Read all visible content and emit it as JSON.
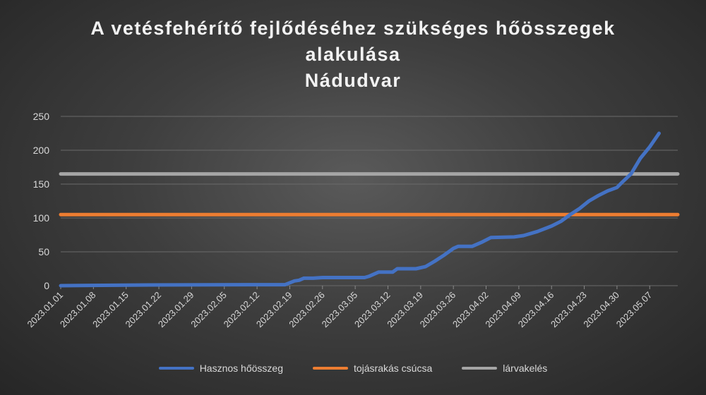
{
  "chart_data": {
    "type": "line",
    "title_lines": [
      "A vetésfehérítő fejlődéséhez szükséges hőösszegek",
      "alakulása",
      "Nádudvar"
    ],
    "xlabel": "",
    "ylabel": "",
    "ylim": [
      0,
      250
    ],
    "yticks": [
      0,
      50,
      100,
      150,
      200,
      250
    ],
    "grid": true,
    "legend_position": "bottom",
    "x_start": "2023.01.01",
    "x_end": "2023.05.13",
    "x_ticks": [
      "2023.01.01",
      "2023.01.08",
      "2023.01.15",
      "2023.01.22",
      "2023.01.29",
      "2023.02.05",
      "2023.02.12",
      "2023.02.19",
      "2023.02.26",
      "2023.03.05",
      "2023.03.12",
      "2023.03.19",
      "2023.03.26",
      "2023.04.02",
      "2023.04.09",
      "2023.04.16",
      "2023.04.23",
      "2023.04.30",
      "2023.05.07"
    ],
    "series": [
      {
        "name": "Hasznos hőösszeg",
        "color": "#4472C4",
        "points": [
          [
            "2023.01.01",
            0
          ],
          [
            "2023.01.10",
            0.5
          ],
          [
            "2023.01.20",
            1
          ],
          [
            "2023.02.10",
            1.5
          ],
          [
            "2023.02.18",
            1.5
          ],
          [
            "2023.02.20",
            7
          ],
          [
            "2023.02.21",
            8
          ],
          [
            "2023.02.22",
            11
          ],
          [
            "2023.02.24",
            11
          ],
          [
            "2023.02.26",
            12
          ],
          [
            "2023.03.07",
            12
          ],
          [
            "2023.03.08",
            14
          ],
          [
            "2023.03.10",
            20
          ],
          [
            "2023.03.13",
            20
          ],
          [
            "2023.03.14",
            25
          ],
          [
            "2023.03.18",
            25
          ],
          [
            "2023.03.20",
            28
          ],
          [
            "2023.03.22",
            36
          ],
          [
            "2023.03.24",
            45
          ],
          [
            "2023.03.26",
            55
          ],
          [
            "2023.03.27",
            58
          ],
          [
            "2023.03.30",
            58
          ],
          [
            "2023.04.01",
            64
          ],
          [
            "2023.04.03",
            71
          ],
          [
            "2023.04.08",
            72
          ],
          [
            "2023.04.10",
            74
          ],
          [
            "2023.04.13",
            80
          ],
          [
            "2023.04.16",
            88
          ],
          [
            "2023.04.18",
            95
          ],
          [
            "2023.04.20",
            105
          ],
          [
            "2023.04.22",
            114
          ],
          [
            "2023.04.24",
            125
          ],
          [
            "2023.04.26",
            133
          ],
          [
            "2023.04.28",
            140
          ],
          [
            "2023.04.30",
            145
          ],
          [
            "2023.05.01",
            152
          ],
          [
            "2023.05.03",
            165
          ],
          [
            "2023.05.05",
            188
          ],
          [
            "2023.05.07",
            205
          ],
          [
            "2023.05.09",
            225
          ]
        ]
      },
      {
        "name": "tojásrakás csúcsa",
        "color": "#ED7D31",
        "points": [
          [
            "2023.01.01",
            105
          ],
          [
            "2023.05.13",
            105
          ]
        ]
      },
      {
        "name": "lárvakelés",
        "color": "#A5A5A5",
        "points": [
          [
            "2023.01.01",
            165
          ],
          [
            "2023.05.13",
            165
          ]
        ]
      }
    ]
  }
}
